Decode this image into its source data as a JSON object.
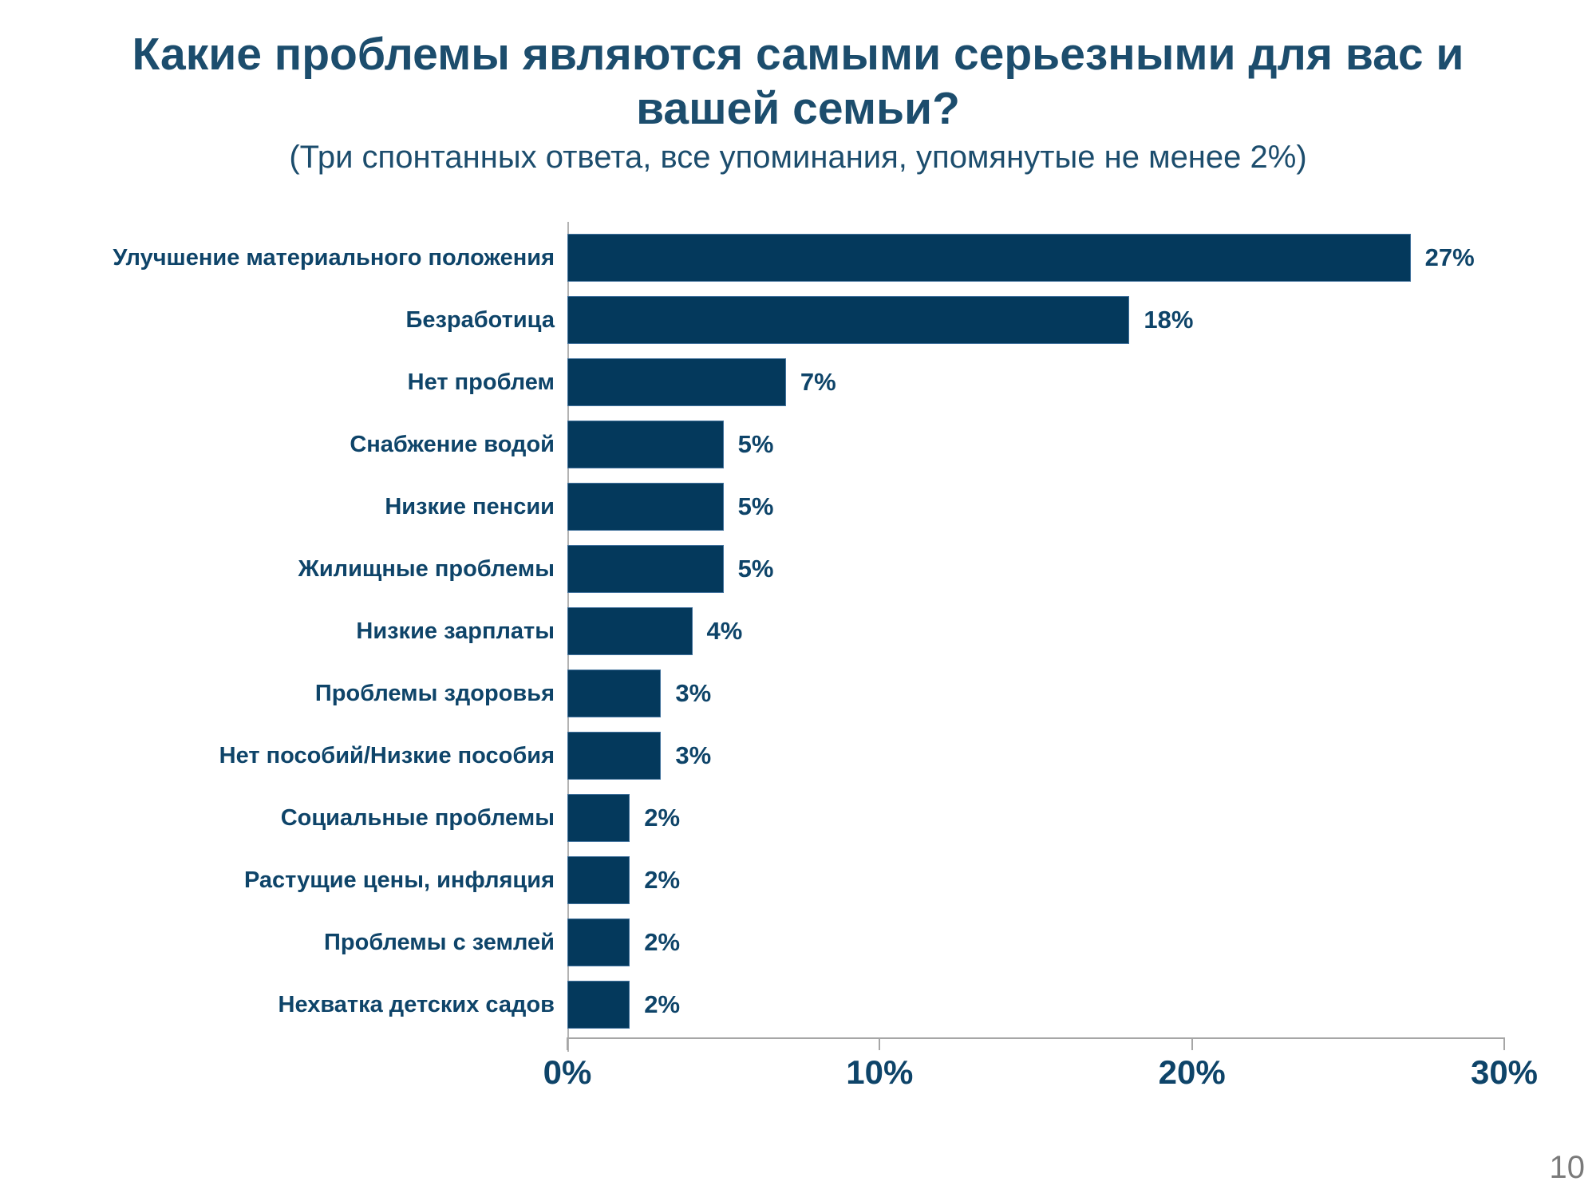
{
  "header": {
    "title": "Какие проблемы являются самыми серьезными для вас и вашей семьи?",
    "subtitle": "(Три спонтанных ответа, все упоминания, упомянутые не менее 2%)"
  },
  "chart_data": {
    "type": "bar",
    "orientation": "horizontal",
    "title": "Какие проблемы являются самыми серьезными для вас и вашей семьи?",
    "subtitle": "(Три спонтанных ответа, все упоминания, упомянутые не менее 2%)",
    "categories": [
      "Улучшение материального положения",
      "Безработица",
      "Нет проблем",
      "Снабжение водой",
      "Низкие пенсии",
      "Жилищные проблемы",
      "Низкие зарплаты",
      "Проблемы здоровья",
      "Нет пособий/Низкие пособия",
      "Социальные проблемы",
      "Растущие цены, инфляция",
      "Проблемы с землей",
      "Нехватка детских садов"
    ],
    "values": [
      27,
      18,
      7,
      5,
      5,
      5,
      4,
      3,
      3,
      2,
      2,
      2,
      2
    ],
    "unit": "%",
    "xlabel": "",
    "ylabel": "",
    "xlim": [
      0,
      30
    ],
    "x_ticks": [
      "0%",
      "10%",
      "20%",
      "30%"
    ],
    "grid": "off",
    "legend": "none",
    "bar_color": "#04395c",
    "bar_border_color": "#41719c",
    "label_color": "#0e4469",
    "axis_color": "#a6a6a6",
    "title_color": "#1c4d6d"
  },
  "footer": {
    "page_number": "10"
  }
}
